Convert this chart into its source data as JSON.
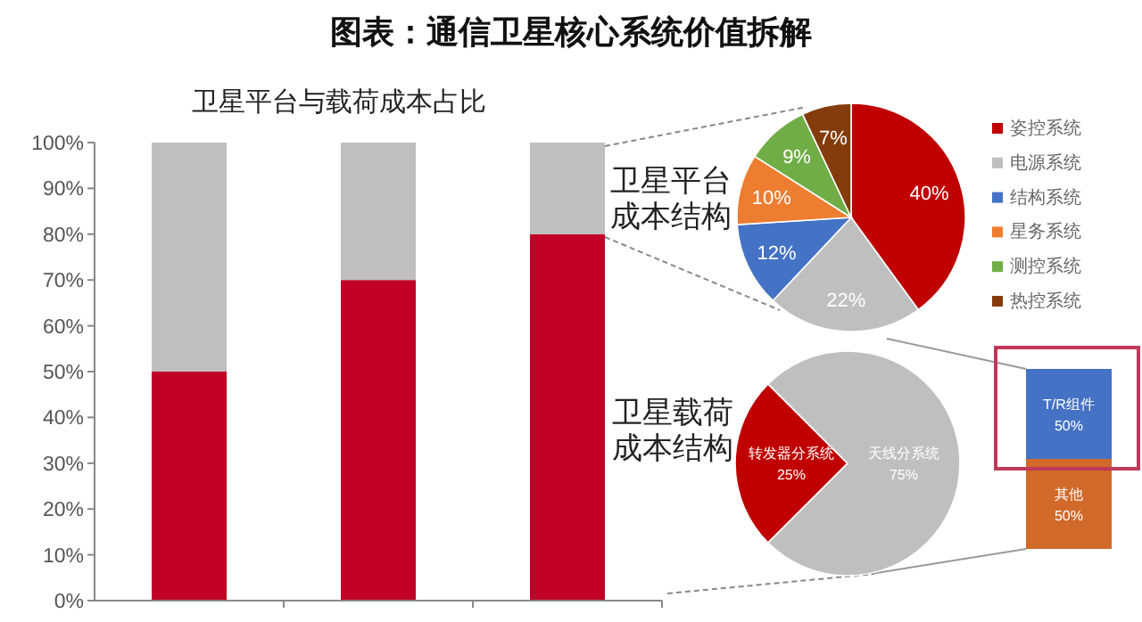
{
  "chart_data": [
    {
      "type": "bar",
      "title": "图表：通信卫星核心系统价值拆解",
      "subtitle": "卫星平台与载荷成本占比",
      "categories": [
        null,
        null,
        null
      ],
      "stacked": true,
      "series": [
        {
          "color": "#c00026",
          "values": [
            50,
            70,
            80
          ]
        },
        {
          "color": "#bfbfbf",
          "values": [
            50,
            30,
            20
          ]
        }
      ],
      "ylim": [
        0,
        100
      ],
      "yticks": [
        {
          "value": 0,
          "label": "0%"
        },
        {
          "value": 10,
          "label": "10%"
        },
        {
          "value": 20,
          "label": "20%"
        },
        {
          "value": 30,
          "label": "30%"
        },
        {
          "value": 40,
          "label": "40%"
        },
        {
          "value": 50,
          "label": "50%"
        },
        {
          "value": 60,
          "label": "60%"
        },
        {
          "value": 70,
          "label": "70%"
        },
        {
          "value": 80,
          "label": "80%"
        },
        {
          "value": 90,
          "label": "90%"
        },
        {
          "value": 100,
          "label": "100%"
        }
      ]
    },
    {
      "type": "pie",
      "title": "卫星平台成本结构",
      "categories": [
        "姿控系统",
        "电源系统",
        "结构系统",
        "星务系统",
        "测控系统",
        "热控系统"
      ],
      "values": [
        40,
        22,
        12,
        10,
        9,
        7
      ],
      "colors": [
        "#c00000",
        "#bfbfbf",
        "#4472c4",
        "#ed7d31",
        "#70ad47",
        "#843c0c"
      ],
      "value_labels": [
        "40%",
        "22%",
        "12%",
        "10%",
        "9%",
        "7%"
      ],
      "legend": "right"
    },
    {
      "type": "pie",
      "title": "卫星载荷成本结构",
      "categories": [
        "转发器分系统",
        "天线分系统"
      ],
      "values": [
        25,
        75
      ],
      "colors": [
        "#c00000",
        "#bfbfbf"
      ],
      "value_labels": [
        "25%",
        "75%"
      ]
    },
    {
      "type": "bar",
      "categories": [
        null
      ],
      "stacked": true,
      "series": [
        {
          "name": "其他",
          "color": "#d0692a",
          "values": [
            50
          ],
          "value_labels": [
            "50%"
          ]
        },
        {
          "name": "T/R组件",
          "color": "#4472c4",
          "values": [
            50
          ],
          "value_labels": [
            "50%"
          ]
        }
      ]
    }
  ]
}
